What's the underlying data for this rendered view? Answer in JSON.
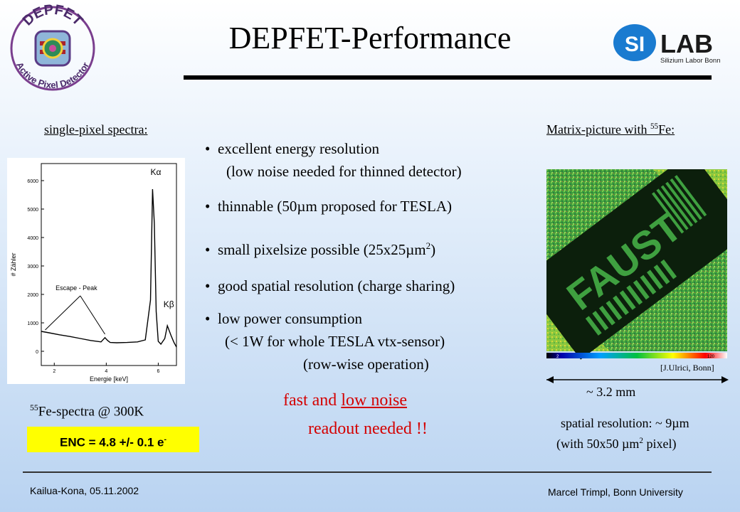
{
  "header": {
    "title": "DEPFET-Performance",
    "logo_left_text_top": "DEPFET",
    "logo_left_text_bottom": "Active Pixel Detector",
    "logo_right_si": "SI",
    "logo_right_lab": "LAB",
    "logo_right_sub": "Silizium Labor Bonn"
  },
  "left": {
    "heading": "single-pixel spectra:",
    "spectrum_caption_sup": "55",
    "spectrum_caption": "Fe-spectra @ 300K",
    "enc_label": "ENC = 4.8 +/- 0.1 e",
    "enc_sup": "-"
  },
  "bullets": {
    "b1": "excellent energy resolution",
    "b1_sub": "(low noise needed for thinned detector)",
    "b2": "thinnable (50µm proposed for TESLA)",
    "b3_pre": "small pixelsize possible (25x25µm",
    "b3_sup": "2",
    "b3_post": ")",
    "b4": "good spatial resolution (charge sharing)",
    "b5": "low power consumption",
    "b5_sub1": "(< 1W for whole TESLA vtx-sensor)",
    "b5_sub2": "(row-wise operation)",
    "conclusion_arrow": "",
    "conclusion_pre": " fast and ",
    "conclusion_under": "low noise",
    "conclusion_line2": "readout needed !!"
  },
  "right": {
    "heading_pre": "Matrix-picture with ",
    "heading_sup": "55",
    "heading_post": "Fe:",
    "matrix_word": "FAUST",
    "credit": "[J.Ulrici, Bonn]",
    "scale_label": "~ 3.2 mm",
    "colorbar_min": "2",
    "colorbar_max": "120",
    "res_line1": "spatial resolution: ~ 9µm",
    "res_line2_pre": "(with 50x50 µm",
    "res_line2_sup": "2",
    "res_line2_post": " pixel)"
  },
  "footer": {
    "left": "Kailua-Kona, 05.11.2002",
    "right": "Marcel Trimpl, Bonn University"
  },
  "chart_data": {
    "type": "line",
    "title": "",
    "xlabel": "Energie [keV]",
    "ylabel": "# Zähler",
    "xlim": [
      1.5,
      6.7
    ],
    "ylim": [
      -500,
      6600
    ],
    "xticks": [
      2,
      4,
      6
    ],
    "yticks": [
      0,
      1000,
      2000,
      3000,
      4000,
      5000,
      6000
    ],
    "annotations": [
      "Kα",
      "Kβ",
      "Escape - Peak"
    ],
    "series": [
      {
        "x": [
          1.5,
          1.8,
          2.2,
          2.6,
          3.0,
          3.4,
          3.8,
          3.95,
          4.05,
          4.15,
          4.4,
          4.8,
          5.2,
          5.5,
          5.7,
          5.78,
          5.85,
          5.92,
          6.0,
          6.1,
          6.25,
          6.35,
          6.49,
          6.6,
          6.7
        ],
        "values": [
          700,
          650,
          580,
          520,
          450,
          380,
          330,
          480,
          380,
          310,
          300,
          310,
          330,
          400,
          1800,
          5700,
          4500,
          1400,
          350,
          250,
          450,
          900,
          560,
          320,
          150
        ]
      }
    ]
  }
}
